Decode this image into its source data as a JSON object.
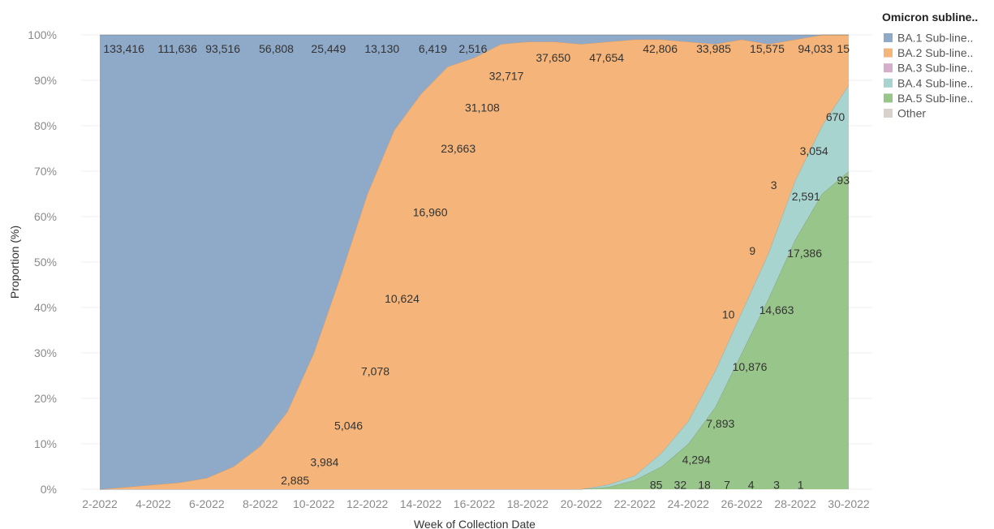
{
  "chart_data": {
    "type": "area",
    "stacked": true,
    "normalized": true,
    "xlabel": "Week of Collection Date",
    "ylabel": "Proportion (%)",
    "ylim": [
      0,
      100
    ],
    "yticks": [
      "0%",
      "10%",
      "20%",
      "30%",
      "40%",
      "50%",
      "60%",
      "70%",
      "80%",
      "90%",
      "100%"
    ],
    "xticks": [
      "2-2022",
      "4-2022",
      "6-2022",
      "8-2022",
      "10-2022",
      "12-2022",
      "14-2022",
      "16-2022",
      "18-2022",
      "20-2022",
      "22-2022",
      "24-2022",
      "26-2022",
      "28-2022",
      "30-2022"
    ],
    "x": [
      2,
      3,
      4,
      5,
      6,
      7,
      8,
      9,
      10,
      11,
      12,
      13,
      14,
      15,
      16,
      17,
      18,
      19,
      20,
      21,
      22,
      23,
      24,
      25,
      26,
      27,
      28,
      29,
      30
    ],
    "legend": {
      "title": "Omicron subline..",
      "position": "top-right",
      "entries": [
        {
          "name": "BA.1 Sub-line..",
          "color": "#8fa9c9"
        },
        {
          "name": "BA.2 Sub-line..",
          "color": "#f5b57a"
        },
        {
          "name": "BA.3 Sub-line..",
          "color": "#d4aecb"
        },
        {
          "name": "BA.4 Sub-line..",
          "color": "#a8d4cf"
        },
        {
          "name": "BA.5 Sub-line..",
          "color": "#98c58a"
        },
        {
          "name": "Other",
          "color": "#d9d2cc"
        }
      ]
    },
    "series": [
      {
        "name": "BA.5 Sub-line..",
        "color": "#98c58a",
        "values": [
          0,
          0,
          0,
          0,
          0,
          0,
          0,
          0,
          0,
          0,
          0,
          0,
          0,
          0,
          0,
          0,
          0,
          0,
          0,
          0.5,
          2,
          5,
          10,
          18,
          30,
          42,
          55,
          65,
          70
        ]
      },
      {
        "name": "BA.4 Sub-line..",
        "color": "#a8d4cf",
        "values": [
          0,
          0,
          0,
          0,
          0,
          0,
          0,
          0,
          0,
          0,
          0,
          0,
          0,
          0,
          0,
          0,
          0,
          0,
          0,
          0.5,
          1,
          3,
          5,
          8,
          9,
          10,
          13,
          15,
          19
        ]
      },
      {
        "name": "BA.2 Sub-line..",
        "color": "#f5b57a",
        "values": [
          0,
          0.5,
          1,
          1.5,
          2.5,
          5,
          9.5,
          17,
          30,
          47,
          65,
          79,
          87,
          93,
          95,
          98,
          98.5,
          98.5,
          98,
          97.5,
          96,
          91,
          83.5,
          72,
          60,
          46,
          31,
          20,
          11
        ]
      },
      {
        "name": "BA.1 Sub-line..",
        "color": "#8fa9c9",
        "values": [
          100,
          99.5,
          99,
          98.5,
          97.5,
          95,
          90.5,
          83,
          70,
          53,
          35,
          21,
          13,
          7,
          5,
          2,
          1.5,
          1.5,
          2,
          1.5,
          1,
          1,
          1.5,
          2,
          1,
          2,
          1,
          0,
          0
        ]
      }
    ],
    "annotations": [
      {
        "text": "133,416",
        "x": 2.9,
        "y": 97
      },
      {
        "text": "111,636",
        "x": 4.9,
        "y": 97
      },
      {
        "text": "93,516",
        "x": 6.6,
        "y": 97
      },
      {
        "text": "56,808",
        "x": 8.6,
        "y": 97
      },
      {
        "text": "25,449",
        "x": 10.55,
        "y": 97
      },
      {
        "text": "13,130",
        "x": 12.55,
        "y": 97
      },
      {
        "text": "6,419",
        "x": 14.45,
        "y": 97
      },
      {
        "text": "2,516",
        "x": 15.95,
        "y": 97
      },
      {
        "text": "37,650",
        "x": 18.95,
        "y": 95
      },
      {
        "text": "47,654",
        "x": 20.95,
        "y": 95
      },
      {
        "text": "42,806",
        "x": 22.95,
        "y": 97
      },
      {
        "text": "33,985",
        "x": 24.95,
        "y": 97
      },
      {
        "text": "15,575",
        "x": 26.95,
        "y": 97
      },
      {
        "text": "94,033",
        "x": 28.75,
        "y": 97
      },
      {
        "text": "15",
        "x": 30.0,
        "y": 97
      },
      {
        "text": "32,717",
        "x": 17.2,
        "y": 91
      },
      {
        "text": "31,108",
        "x": 16.3,
        "y": 84
      },
      {
        "text": "23,663",
        "x": 15.4,
        "y": 75
      },
      {
        "text": "16,960",
        "x": 14.35,
        "y": 61
      },
      {
        "text": "10,624",
        "x": 13.3,
        "y": 42
      },
      {
        "text": "7,078",
        "x": 12.3,
        "y": 26
      },
      {
        "text": "5,046",
        "x": 11.3,
        "y": 14
      },
      {
        "text": "3,984",
        "x": 10.4,
        "y": 6
      },
      {
        "text": "2,885",
        "x": 9.3,
        "y": 2
      },
      {
        "text": "85",
        "x": 22.8,
        "y": 1
      },
      {
        "text": "32",
        "x": 23.7,
        "y": 1
      },
      {
        "text": "18",
        "x": 24.6,
        "y": 1
      },
      {
        "text": "7",
        "x": 25.45,
        "y": 1
      },
      {
        "text": "4",
        "x": 26.35,
        "y": 1
      },
      {
        "text": "3",
        "x": 27.3,
        "y": 1
      },
      {
        "text": "1",
        "x": 28.2,
        "y": 1
      },
      {
        "text": "4,294",
        "x": 24.3,
        "y": 6.5
      },
      {
        "text": "7,893",
        "x": 25.2,
        "y": 14.5
      },
      {
        "text": "10,876",
        "x": 26.3,
        "y": 27
      },
      {
        "text": "14,663",
        "x": 27.3,
        "y": 39.5
      },
      {
        "text": "17,386",
        "x": 28.35,
        "y": 52
      },
      {
        "text": "2,591",
        "x": 28.4,
        "y": 64.5
      },
      {
        "text": "93",
        "x": 30.0,
        "y": 68
      },
      {
        "text": "10",
        "x": 25.5,
        "y": 38.5
      },
      {
        "text": "9",
        "x": 26.4,
        "y": 52.5
      },
      {
        "text": "3",
        "x": 27.2,
        "y": 67
      },
      {
        "text": "3,054",
        "x": 28.7,
        "y": 74.5
      },
      {
        "text": "670",
        "x": 29.5,
        "y": 82
      }
    ]
  }
}
